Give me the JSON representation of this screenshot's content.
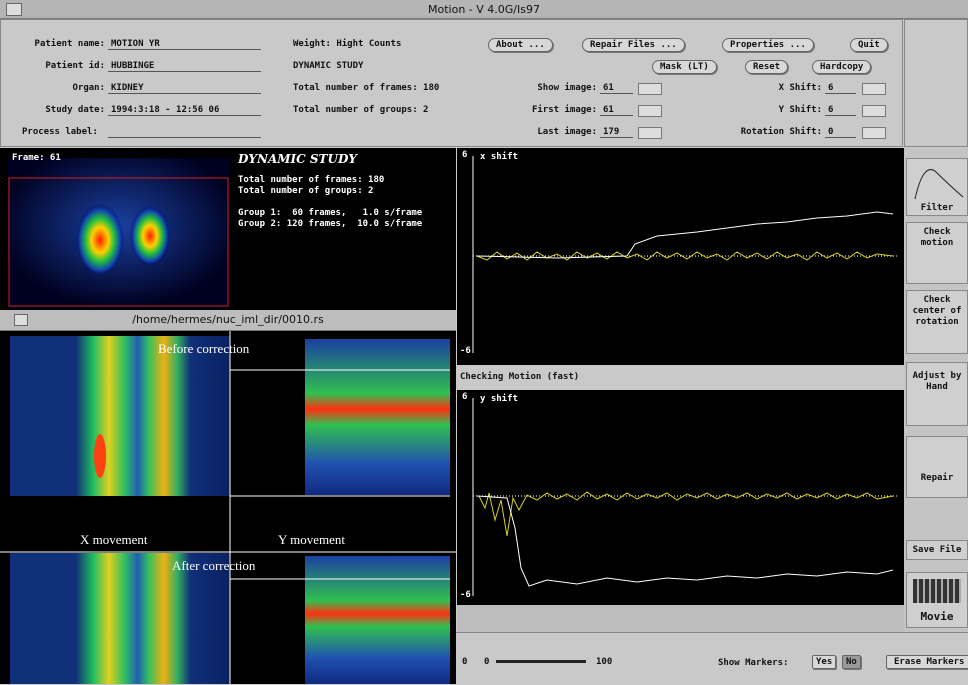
{
  "title_bar": "Motion - V 4.0G/Is97",
  "patient": {
    "fields": [
      {
        "label": "Patient name:",
        "value": "MOTION YR"
      },
      {
        "label": "Patient id:",
        "value": "HUBBINGE"
      },
      {
        "label": "Organ:",
        "value": "KIDNEY"
      },
      {
        "label": "Study date:",
        "value": "1994:3:18 - 12:56 06"
      }
    ],
    "process_label": "Process label:"
  },
  "study": {
    "weight": "Weight: Hight Counts",
    "type": "DYNAMIC STUDY",
    "frames": "Total number of frames: 180",
    "groups": "Total number of groups: 2"
  },
  "buttons": [
    "About ...",
    "Repair Files ...",
    "Properties ...",
    "Quit",
    "Mask (LT)",
    "Reset",
    "Hardcopy"
  ],
  "image_controls": [
    {
      "label": "Show image:",
      "value": 61
    },
    {
      "label": "First image:",
      "value": 61
    },
    {
      "label": "Last image:",
      "value": 179
    }
  ],
  "shift_controls": [
    {
      "label": "X Shift:",
      "value": 6
    },
    {
      "label": "Y Shift:",
      "value": 6
    },
    {
      "label": "Rotation Shift:",
      "value": 0
    }
  ],
  "viewer": {
    "frame": "Frame: 61",
    "heading": "DYNAMIC STUDY",
    "lines": [
      "Total number of frames: 180",
      "Total number of groups: 2",
      "Group 1:  60 frames,   1.0 s/frame",
      "Group 2: 120 frames,  10.0 s/frame"
    ]
  },
  "sinogram": {
    "path": "/home/hermes/nuc_iml_dir/0010.rs",
    "before": "Before correction",
    "x_movement": "X movement",
    "y_movement": "Y movement",
    "after": "After correction"
  },
  "plots": [
    {
      "label": "x shift",
      "ymax": 6,
      "ymin": -6
    },
    {
      "label": "y shift",
      "ymax": 6,
      "ymin": -6
    }
  ],
  "status": "Checking Motion (fast)",
  "tools": [
    "Filter",
    "Check motion",
    "Check center of rotation",
    "Adjust by Hand",
    "Repair",
    "Save File",
    "Movie"
  ],
  "bottom": {
    "slider_min": 0,
    "slider_value": 0,
    "slider_max": 100,
    "markers_label": "Show Markers:",
    "yes": "Yes",
    "no": "No",
    "erase": "Erase Markers"
  }
}
